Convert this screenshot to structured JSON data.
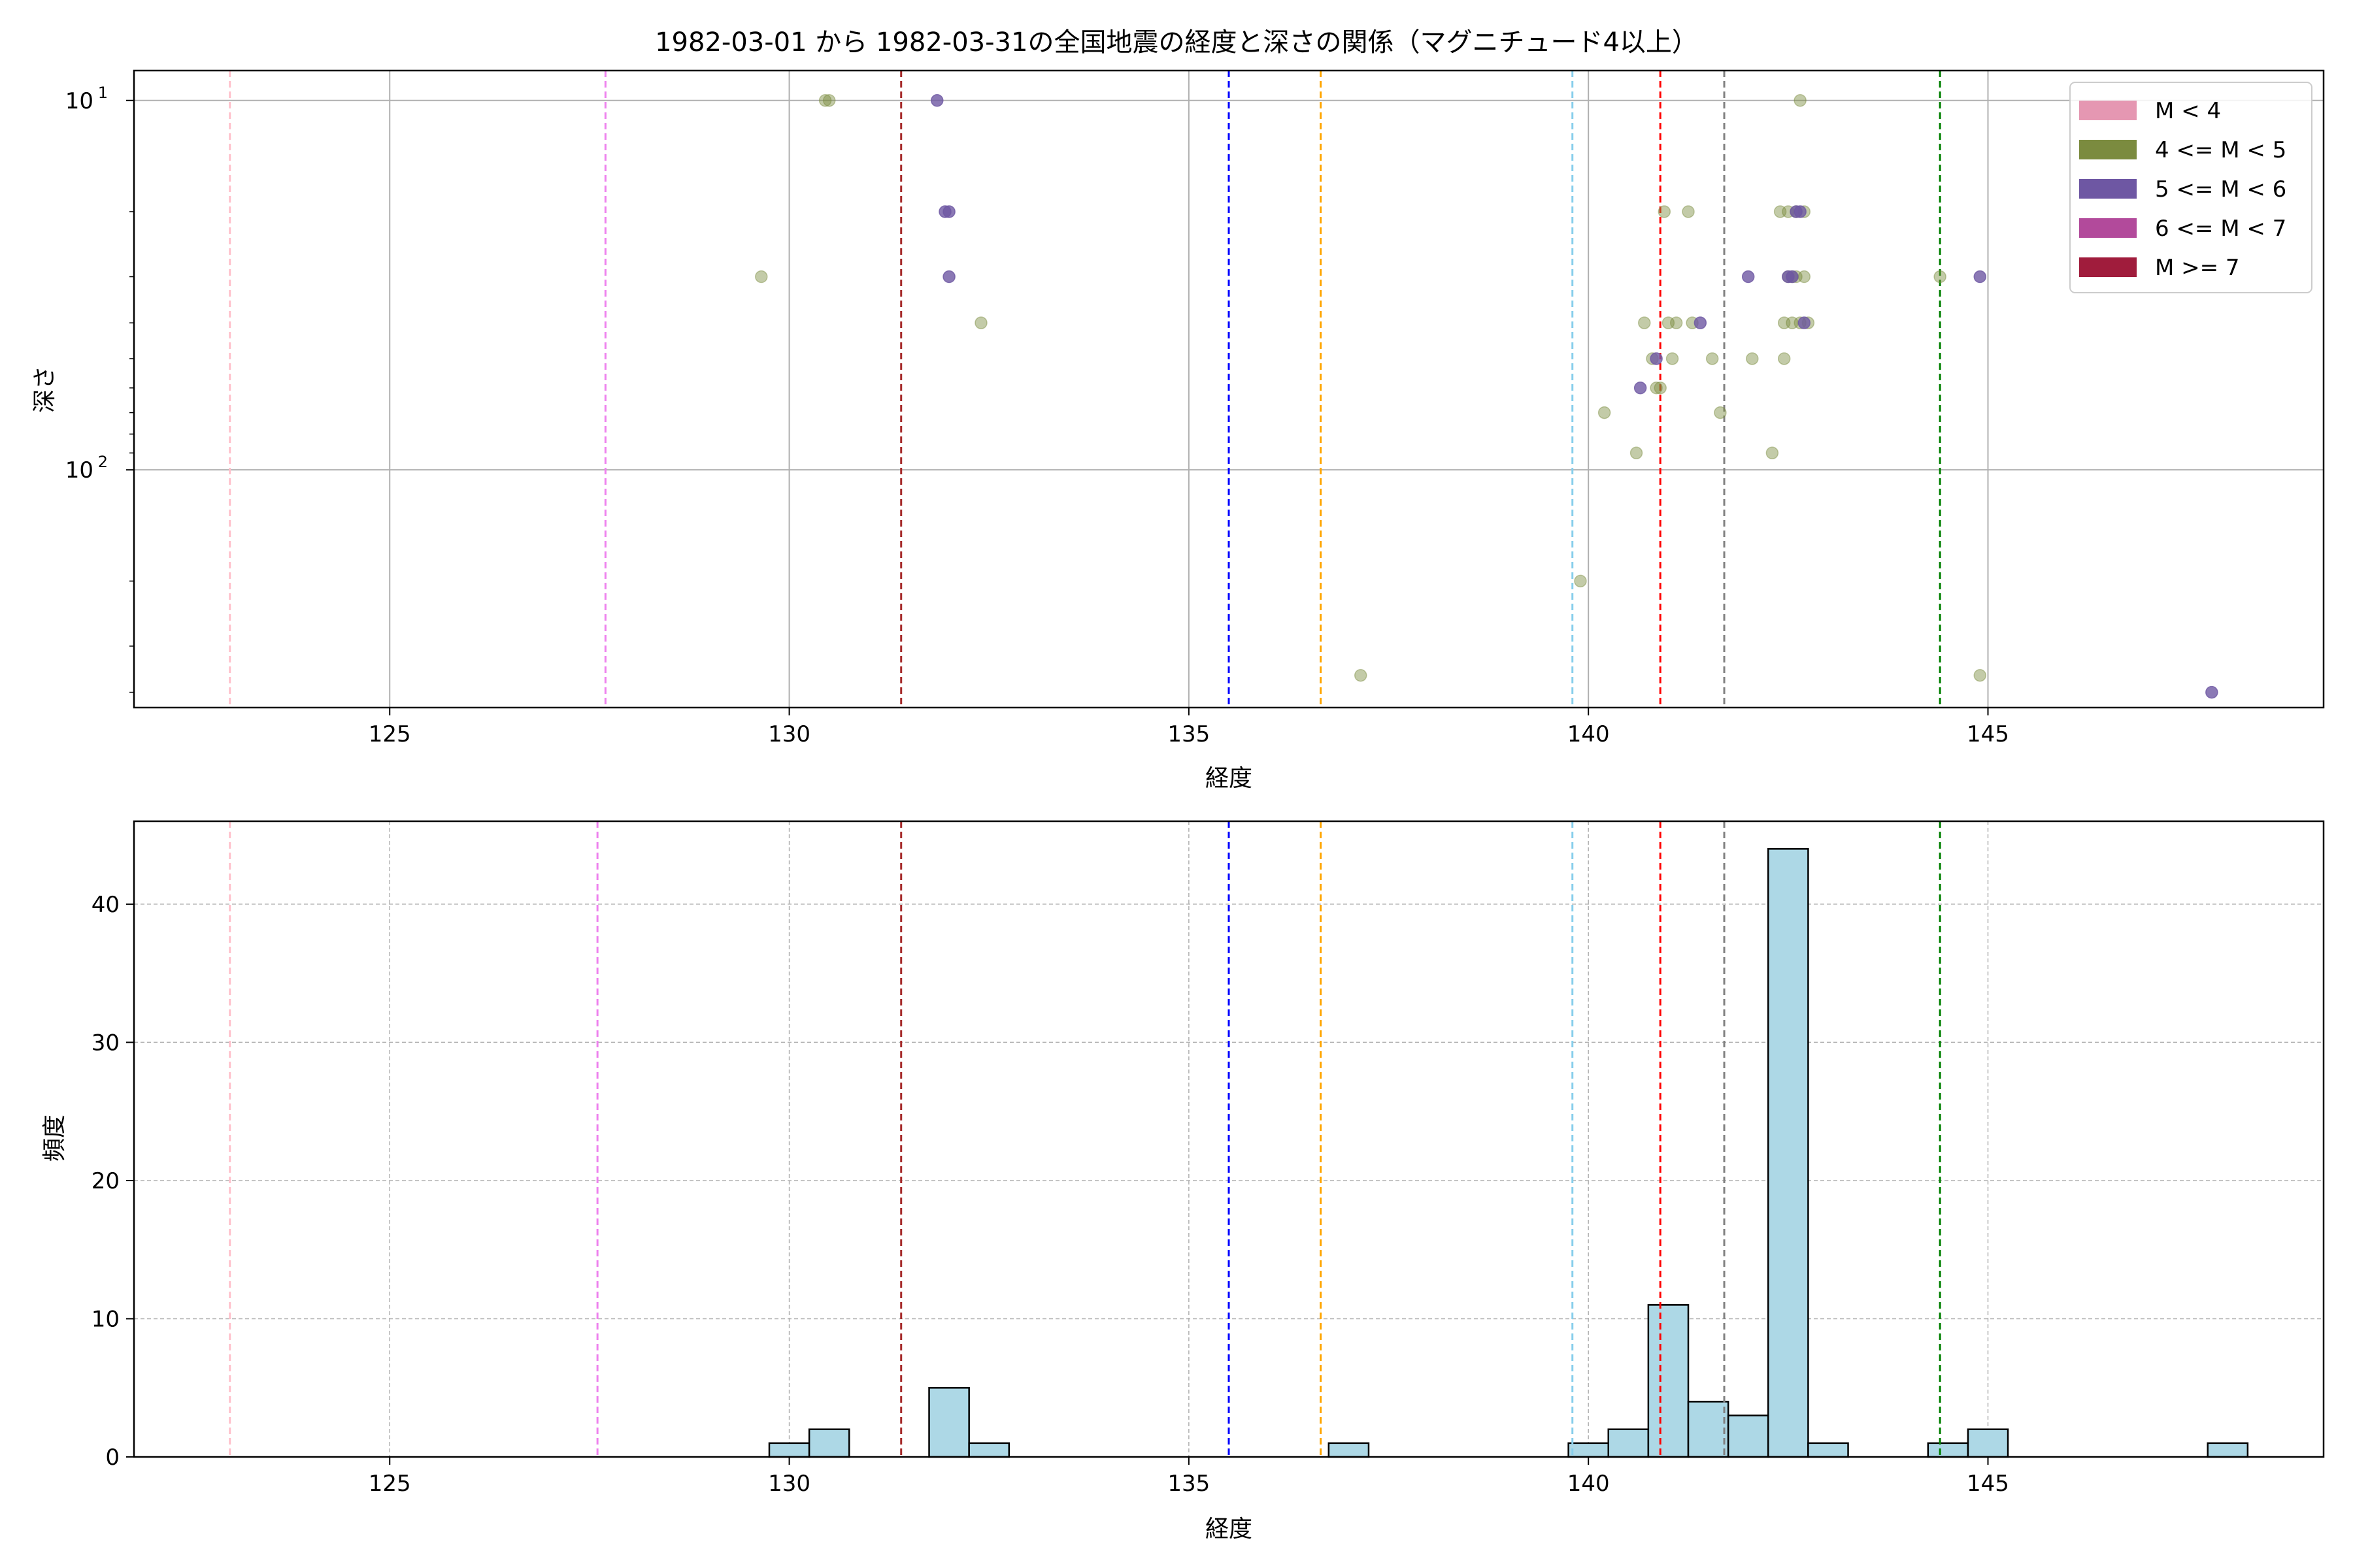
{
  "chart_data": [
    {
      "type": "scatter",
      "title": "1982-03-01 から 1982-03-31の全国地震の経度と深さの関係（マグニチュード4以上）",
      "xlabel": "経度",
      "ylabel": "深さ",
      "xlim": [
        121.8,
        149.2
      ],
      "ylim": [
        440,
        8.3
      ],
      "yscale": "log",
      "yaxis_inverted": true,
      "grid": true,
      "xticks": [
        125,
        130,
        135,
        140,
        145
      ],
      "xtick_labels": [
        "125",
        "130",
        "135",
        "140",
        "145"
      ],
      "yticks": [
        10,
        100
      ],
      "ytick_base": "10",
      "ytick_exponents": [
        "1",
        "2"
      ],
      "legend": {
        "placement": "top-right",
        "entries": [
          {
            "label": "M < 4",
            "color": "#e597b2"
          },
          {
            "label": "4 <= M < 5",
            "color": "#7b8b3f"
          },
          {
            "label": "5 <= M < 6",
            "color": "#6e57a3"
          },
          {
            "label": "6 <= M < 7",
            "color": "#b24a9b"
          },
          {
            "label": "M >= 7",
            "color": "#a01c3c"
          }
        ]
      },
      "vlines": [
        {
          "x": 123.0,
          "color": "#ffc0cb"
        },
        {
          "x": 127.7,
          "color": "#ee82ee"
        },
        {
          "x": 131.4,
          "color": "#a52a2a"
        },
        {
          "x": 135.5,
          "color": "#0000ff"
        },
        {
          "x": 136.65,
          "color": "#ffa500"
        },
        {
          "x": 139.8,
          "color": "#87ceeb"
        },
        {
          "x": 140.9,
          "color": "#ff0000"
        },
        {
          "x": 141.7,
          "color": "#808080"
        },
        {
          "x": 144.4,
          "color": "#008000"
        }
      ],
      "series": [
        {
          "name": "4 <= M < 5",
          "color": "#7b8b3f",
          "points": [
            [
              130.45,
              10
            ],
            [
              130.5,
              10
            ],
            [
              142.65,
              10
            ],
            [
              129.65,
              30
            ],
            [
              132.4,
              40
            ],
            [
              137.15,
              360
            ],
            [
              139.9,
              200
            ],
            [
              140.2,
              70
            ],
            [
              140.6,
              90
            ],
            [
              140.7,
              40
            ],
            [
              140.8,
              50
            ],
            [
              140.85,
              60
            ],
            [
              140.9,
              60
            ],
            [
              140.95,
              20
            ],
            [
              141.0,
              40
            ],
            [
              141.05,
              50
            ],
            [
              141.1,
              40
            ],
            [
              141.25,
              20
            ],
            [
              141.3,
              40
            ],
            [
              141.55,
              50
            ],
            [
              141.65,
              70
            ],
            [
              142.05,
              50
            ],
            [
              142.3,
              90
            ],
            [
              142.45,
              50
            ],
            [
              142.4,
              20
            ],
            [
              142.45,
              40
            ],
            [
              142.5,
              30
            ],
            [
              142.5,
              20
            ],
            [
              142.55,
              30
            ],
            [
              142.55,
              40
            ],
            [
              142.6,
              20
            ],
            [
              142.6,
              30
            ],
            [
              142.65,
              40
            ],
            [
              142.7,
              20
            ],
            [
              142.7,
              30
            ],
            [
              142.75,
              40
            ],
            [
              144.4,
              30
            ],
            [
              144.9,
              360
            ]
          ]
        },
        {
          "name": "5 <= M < 6",
          "color": "#6e57a3",
          "points": [
            [
              131.85,
              10
            ],
            [
              131.95,
              20
            ],
            [
              132.0,
              20
            ],
            [
              132.0,
              30
            ],
            [
              140.65,
              60
            ],
            [
              140.85,
              50
            ],
            [
              141.4,
              40
            ],
            [
              142.0,
              30
            ],
            [
              142.5,
              30
            ],
            [
              142.55,
              30
            ],
            [
              142.6,
              20
            ],
            [
              142.65,
              20
            ],
            [
              142.7,
              40
            ],
            [
              144.9,
              30
            ],
            [
              147.8,
              400
            ]
          ]
        }
      ]
    },
    {
      "type": "bar",
      "subtype": "histogram",
      "xlabel": "経度",
      "ylabel": "頻度",
      "xlim": [
        121.8,
        149.2
      ],
      "ylim": [
        0,
        46
      ],
      "grid": true,
      "xticks": [
        125,
        130,
        135,
        140,
        145
      ],
      "xtick_labels": [
        "125",
        "130",
        "135",
        "140",
        "145"
      ],
      "yticks": [
        0,
        10,
        20,
        30,
        40
      ],
      "ytick_labels": [
        "0",
        "10",
        "20",
        "30",
        "40"
      ],
      "bar_color": "#add8e6",
      "bin_width": 0.5,
      "bins": [
        {
          "x0": 129.75,
          "count": 1
        },
        {
          "x0": 130.25,
          "count": 2
        },
        {
          "x0": 131.75,
          "count": 5
        },
        {
          "x0": 132.25,
          "count": 1
        },
        {
          "x0": 136.75,
          "count": 1
        },
        {
          "x0": 139.75,
          "count": 1
        },
        {
          "x0": 140.25,
          "count": 2
        },
        {
          "x0": 140.75,
          "count": 11
        },
        {
          "x0": 141.25,
          "count": 4
        },
        {
          "x0": 141.75,
          "count": 3
        },
        {
          "x0": 142.25,
          "count": 44
        },
        {
          "x0": 142.75,
          "count": 1
        },
        {
          "x0": 144.25,
          "count": 1
        },
        {
          "x0": 144.75,
          "count": 2
        },
        {
          "x0": 147.75,
          "count": 1
        }
      ],
      "vlines": [
        {
          "x": 123.0,
          "color": "#ffc0cb"
        },
        {
          "x": 127.6,
          "color": "#ee82ee"
        },
        {
          "x": 131.4,
          "color": "#a52a2a"
        },
        {
          "x": 135.5,
          "color": "#0000ff"
        },
        {
          "x": 136.65,
          "color": "#ffa500"
        },
        {
          "x": 139.8,
          "color": "#87ceeb"
        },
        {
          "x": 140.9,
          "color": "#ff0000"
        },
        {
          "x": 141.7,
          "color": "#808080"
        },
        {
          "x": 144.4,
          "color": "#008000"
        }
      ]
    }
  ]
}
